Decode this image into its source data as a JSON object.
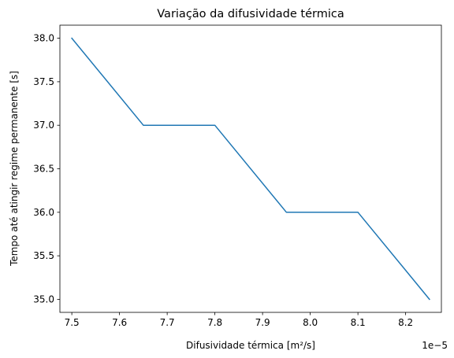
{
  "chart_data": {
    "type": "line",
    "title": "Variação da difusividade térmica",
    "xlabel": "Difusividade térmica [m²/s]",
    "ylabel": "Tempo até atingir regime permanente [s]",
    "x_offset_label": "1e−5",
    "x_scale_factor": 1e-05,
    "xlim": [
      7.475e-05,
      8.275e-05
    ],
    "ylim": [
      34.85,
      38.15
    ],
    "x_ticks": [
      7.5e-05,
      7.6e-05,
      7.7e-05,
      7.8e-05,
      7.9e-05,
      8e-05,
      8.1e-05,
      8.2e-05
    ],
    "x_tick_labels": [
      "7.5",
      "7.6",
      "7.7",
      "7.8",
      "7.9",
      "8.0",
      "8.1",
      "8.2"
    ],
    "y_ticks": [
      35.0,
      35.5,
      36.0,
      36.5,
      37.0,
      37.5,
      38.0
    ],
    "y_tick_labels": [
      "35.0",
      "35.5",
      "36.0",
      "36.5",
      "37.0",
      "37.5",
      "38.0"
    ],
    "grid": false,
    "series": [
      {
        "color": "#1f77b4",
        "x": [
          7.5e-05,
          7.65e-05,
          7.8e-05,
          7.95e-05,
          8.1e-05,
          8.25e-05
        ],
        "y": [
          38.0,
          37.0,
          37.0,
          36.0,
          36.0,
          35.0
        ]
      }
    ]
  }
}
